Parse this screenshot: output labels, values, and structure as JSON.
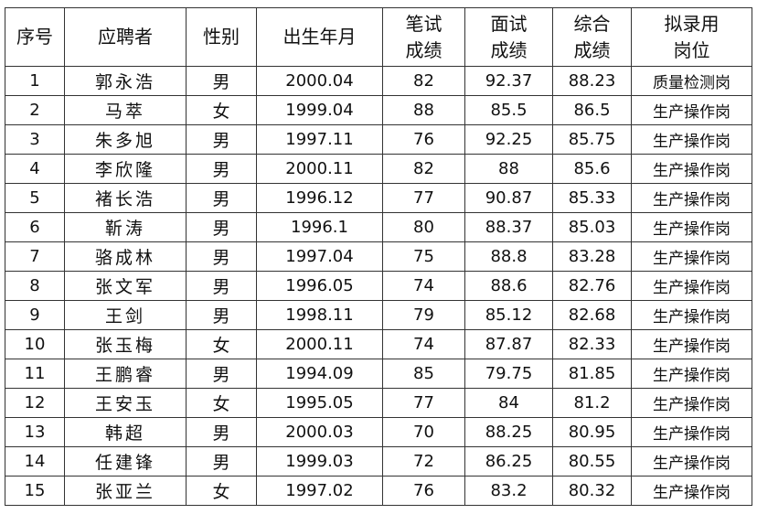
{
  "headers": [
    "序号",
    "应聘者",
    "性别",
    "出生年月",
    "笔试\n成绩",
    "面试\n成绩",
    "综合\n成绩",
    "拟录用\n岗位"
  ],
  "rows": [
    [
      "1",
      "郭永浩",
      "男",
      "2000.04",
      "82",
      "92.37",
      "88.23",
      "质量检测岗"
    ],
    [
      "2",
      "马萃",
      "女",
      "1999.04",
      "88",
      "85.5",
      "86.5",
      "生产操作岗"
    ],
    [
      "3",
      "朱多旭",
      "男",
      "1997.11",
      "76",
      "92.25",
      "85.75",
      "生产操作岗"
    ],
    [
      "4",
      "李欣隆",
      "男",
      "2000.11",
      "82",
      "88",
      "85.6",
      "生产操作岗"
    ],
    [
      "5",
      "褚长浩",
      "男",
      "1996.12",
      "77",
      "90.87",
      "85.33",
      "生产操作岗"
    ],
    [
      "6",
      "靳涛",
      "男",
      "1996.1",
      "80",
      "88.37",
      "85.03",
      "生产操作岗"
    ],
    [
      "7",
      "骆成林",
      "男",
      "1997.04",
      "75",
      "88.8",
      "83.28",
      "生产操作岗"
    ],
    [
      "8",
      "张文军",
      "男",
      "1996.05",
      "74",
      "88.6",
      "82.76",
      "生产操作岗"
    ],
    [
      "9",
      "王剑",
      "男",
      "1998.11",
      "79",
      "85.12",
      "82.68",
      "生产操作岗"
    ],
    [
      "10",
      "张玉梅",
      "女",
      "2000.11",
      "74",
      "87.87",
      "82.33",
      "生产操作岗"
    ],
    [
      "11",
      "王鹏睿",
      "男",
      "1994.09",
      "85",
      "79.75",
      "81.85",
      "生产操作岗"
    ],
    [
      "12",
      "王安玉",
      "女",
      "1995.05",
      "77",
      "84",
      "81.2",
      "生产操作岗"
    ],
    [
      "13",
      "韩超",
      "男",
      "2000.03",
      "70",
      "88.25",
      "80.95",
      "生产操作岗"
    ],
    [
      "14",
      "任建锋",
      "男",
      "1999.03",
      "72",
      "86.25",
      "80.55",
      "生产操作岗"
    ],
    [
      "15",
      "张亚兰",
      "女",
      "1997.02",
      "76",
      "83.2",
      "80.32",
      "生产操作岗"
    ]
  ]
}
